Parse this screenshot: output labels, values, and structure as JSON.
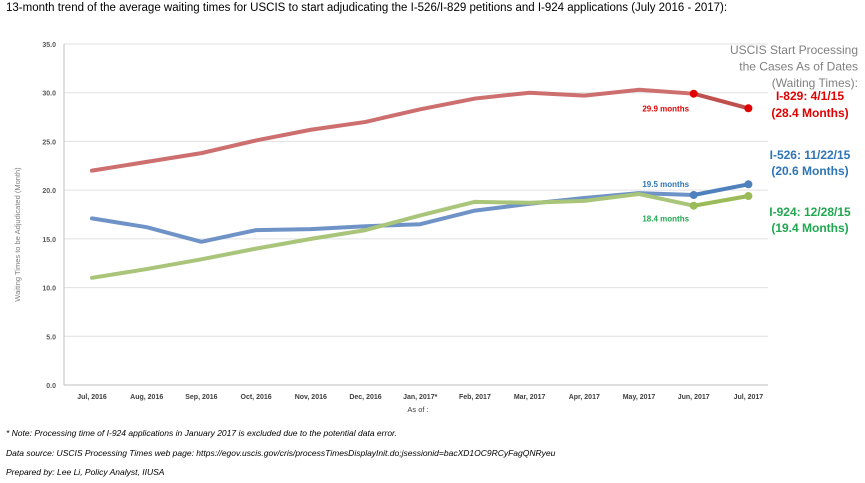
{
  "title": "13-month trend of the average waiting times for USCIS to start adjudicating the I-526/I-829 petitions and I-924 applications (July 2016 - 2017):",
  "notes": {
    "note1": "* Note: Processing time of I-924 applications in January 2017 is excluded due to the potential data error.",
    "note2": "Data source: USCIS Processing Times web page: https://egov.uscis.gov/cris/processTimesDisplayInit.do;jsessionid=bacXD1OC9RCyFagQNRyeu",
    "note3": "Prepared by: Lee Li, Policy Analyst, IIUSA"
  },
  "colors": {
    "i829": "#cd6f6f",
    "i829_accent": "#e00000",
    "i526": "#6f93c6",
    "i526_accent": "#2e75b6",
    "i924": "#a9c57a",
    "i924_accent": "#1fa84f",
    "axis": "#bfbfbf",
    "grid": "#e0e0e0"
  },
  "chart_data": {
    "type": "line",
    "title": "13-month trend of the average waiting times for USCIS to start adjudicating the I-526/I-829 petitions and I-924 applications (July 2016 - 2017):",
    "xlabel": "As of :",
    "ylabel": "Waiting Times to be Adjudicated (Month)",
    "ylim": [
      0,
      35
    ],
    "yticks": [
      "0.0",
      "5.0",
      "10.0",
      "15.0",
      "20.0",
      "25.0",
      "30.0",
      "35.0"
    ],
    "categories": [
      "Jul, 2016",
      "Aug, 2016",
      "Sep, 2016",
      "Oct, 2016",
      "Nov, 2016",
      "Dec, 2016",
      "Jan, 2017*",
      "Feb, 2017",
      "Mar, 2017",
      "Apr, 2017",
      "May, 2017",
      "Jun, 2017",
      "Jul, 2017"
    ],
    "series": [
      {
        "name": "I-829",
        "values": [
          22.0,
          22.9,
          23.8,
          25.1,
          26.2,
          27.0,
          28.3,
          29.4,
          30.0,
          29.7,
          30.3,
          29.9,
          28.4
        ]
      },
      {
        "name": "I-526",
        "values": [
          17.1,
          16.2,
          14.7,
          15.9,
          16.0,
          16.3,
          16.5,
          17.9,
          18.6,
          19.2,
          19.7,
          19.5,
          20.6
        ]
      },
      {
        "name": "I-924",
        "values": [
          11.0,
          11.9,
          12.9,
          14.0,
          15.0,
          15.9,
          17.4,
          18.8,
          18.7,
          18.9,
          19.6,
          18.4,
          19.4
        ]
      }
    ],
    "point_labels": [
      {
        "series": "I-829",
        "index": 11,
        "text": "29.9 months"
      },
      {
        "series": "I-526",
        "index": 11,
        "text": "19.5 months"
      },
      {
        "series": "I-924",
        "index": 11,
        "text": "18.4 months"
      }
    ],
    "legend_title": [
      "USCIS Start Processing",
      "the Cases As of Dates",
      "(Waiting Times):"
    ],
    "end_labels": [
      {
        "series": "I-829",
        "line1": "I-829: 4/1/15",
        "line2": "(28.4 Months)"
      },
      {
        "series": "I-526",
        "line1": "I-526: 11/22/15",
        "line2": "(20.6 Months)"
      },
      {
        "series": "I-924",
        "line1": "I-924: 12/28/15",
        "line2": "(19.4 Months)"
      }
    ],
    "grid": true
  }
}
